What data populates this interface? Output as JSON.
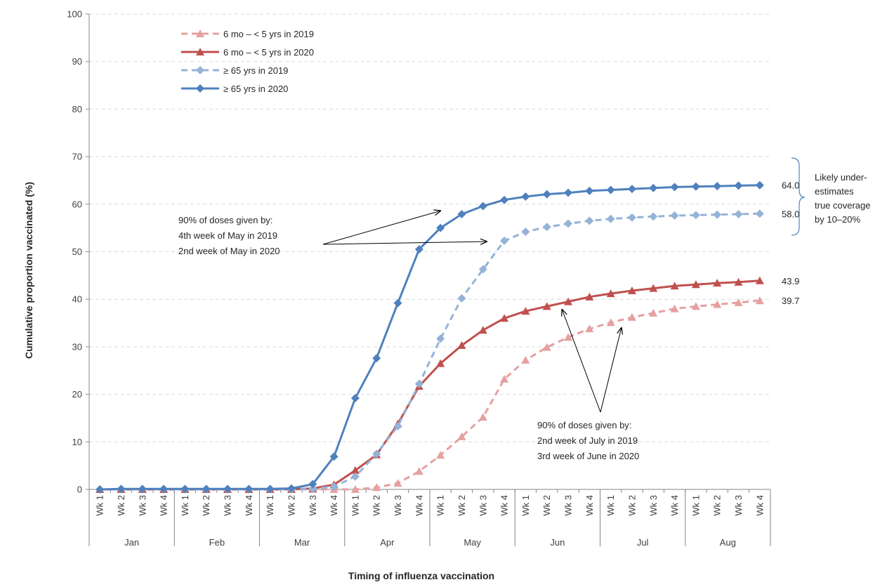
{
  "chart_data": {
    "type": "line",
    "title": "",
    "xlabel": "Timing of influenza vaccination",
    "ylabel": "Cumulative proportion vaccinated (%)",
    "ylim": [
      0,
      100
    ],
    "yticks": [
      "0",
      "10",
      "20",
      "30",
      "40",
      "50",
      "60",
      "70",
      "80",
      "90",
      "100"
    ],
    "grid": "horizontal dashed",
    "legend_position": "top-left",
    "months": [
      "Jan",
      "Feb",
      "Mar",
      "Apr",
      "May",
      "Jun",
      "Jul",
      "Aug"
    ],
    "weeks": [
      "Wk 1",
      "Wk 2",
      "Wk 3",
      "Wk 4"
    ],
    "series": [
      {
        "name": "6 mo – < 5 yrs in 2019",
        "color": "#e6a0a0",
        "dashed": true,
        "marker": "triangle",
        "values": [
          0,
          0,
          0,
          0,
          0,
          0,
          0,
          0,
          0,
          0,
          0,
          0,
          0,
          0.4,
          1.3,
          3.8,
          7.2,
          11.1,
          15.2,
          23.2,
          27.2,
          29.9,
          32.0,
          33.8,
          35.1,
          36.2,
          37.1,
          38.0,
          38.5,
          38.9,
          39.3,
          39.7
        ]
      },
      {
        "name": "6 mo – < 5 yrs in 2020",
        "color": "#c0504d",
        "dashed": false,
        "marker": "triangle",
        "values": [
          0,
          0,
          0,
          0,
          0,
          0,
          0,
          0,
          0,
          0,
          0.2,
          1.0,
          4.0,
          7.3,
          13.8,
          21.7,
          26.5,
          30.3,
          33.5,
          36.0,
          37.5,
          38.5,
          39.5,
          40.5,
          41.2,
          41.8,
          42.3,
          42.8,
          43.1,
          43.4,
          43.6,
          43.9
        ]
      },
      {
        "name": "≥ 65 yrs in 2019",
        "color": "#95b3d7",
        "dashed": true,
        "marker": "diamond",
        "values": [
          0,
          0,
          0,
          0,
          0,
          0,
          0,
          0,
          0,
          0,
          0.1,
          0.6,
          2.7,
          7.5,
          13.3,
          22.2,
          31.7,
          40.2,
          46.3,
          52.3,
          54.2,
          55.2,
          55.9,
          56.5,
          56.9,
          57.2,
          57.4,
          57.6,
          57.7,
          57.8,
          57.9,
          58.0
        ]
      },
      {
        "name": "≥ 65 yrs in 2020",
        "color": "#4f81bd",
        "dashed": false,
        "marker": "diamond",
        "values": [
          0,
          0.1,
          0.1,
          0.1,
          0.1,
          0.1,
          0.1,
          0.1,
          0.1,
          0.2,
          1.1,
          6.9,
          19.2,
          27.6,
          39.2,
          50.5,
          55.0,
          57.9,
          59.6,
          60.9,
          61.6,
          62.1,
          62.4,
          62.8,
          63.0,
          63.2,
          63.4,
          63.6,
          63.7,
          63.8,
          63.9,
          64.0
        ]
      }
    ],
    "end_labels": [
      "64.0",
      "58.0",
      "43.9",
      "39.7"
    ],
    "annotations": {
      "top_left": [
        "90% of doses given by:",
        "4th week of May in 2019",
        "2nd week of May in 2020"
      ],
      "bottom_right": [
        "90% of doses given by:",
        "2nd week of July in 2019",
        "3rd week of June in 2020"
      ],
      "bracket": [
        "Likely under-",
        "estimates",
        "true coverage",
        "by 10–20%"
      ]
    }
  }
}
